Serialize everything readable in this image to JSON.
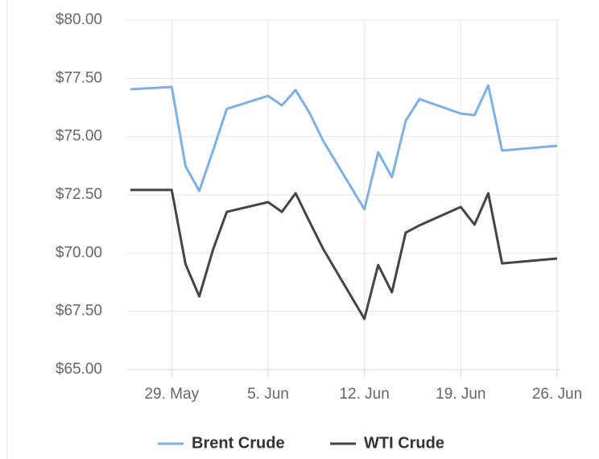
{
  "chart_data": {
    "type": "line",
    "x": [
      "05-26",
      "05-29",
      "05-30",
      "05-31",
      "06-01",
      "06-02",
      "06-05",
      "06-06",
      "06-07",
      "06-08",
      "06-09",
      "06-12",
      "06-13",
      "06-14",
      "06-15",
      "06-16",
      "06-19",
      "06-20",
      "06-21",
      "06-22",
      "06-26"
    ],
    "series": [
      {
        "name": "Brent Crude",
        "color": "#7cb0e6",
        "values": [
          77.03,
          77.13,
          73.74,
          72.67,
          74.4,
          76.19,
          76.75,
          76.34,
          77.0,
          76.03,
          74.82,
          71.88,
          74.33,
          73.26,
          75.68,
          76.61,
          75.99,
          75.92,
          77.2,
          74.4,
          74.61
        ]
      },
      {
        "name": "WTI Crude",
        "color": "#434348",
        "values": [
          72.71,
          72.71,
          69.53,
          68.14,
          70.15,
          71.77,
          72.19,
          71.77,
          72.57,
          71.36,
          70.18,
          67.18,
          69.49,
          68.32,
          70.88,
          71.19,
          71.98,
          71.22,
          72.57,
          69.56,
          69.77
        ]
      }
    ],
    "ylim": [
      65,
      80
    ],
    "yticks": [
      {
        "value": 65,
        "label": "$65.00"
      },
      {
        "value": 67.5,
        "label": "$67.50"
      },
      {
        "value": 70,
        "label": "$70.00"
      },
      {
        "value": 72.5,
        "label": "$72.50"
      },
      {
        "value": 75,
        "label": "$75.00"
      },
      {
        "value": 77.5,
        "label": "$77.50"
      },
      {
        "value": 80,
        "label": "$80.00"
      }
    ],
    "xticks": [
      {
        "value": "05-29",
        "label": "29. May"
      },
      {
        "value": "06-05",
        "label": "5. Jun"
      },
      {
        "value": "06-12",
        "label": "12. Jun"
      },
      {
        "value": "06-19",
        "label": "19. Jun"
      },
      {
        "value": "06-26",
        "label": "26. Jun"
      }
    ],
    "grid": true
  }
}
